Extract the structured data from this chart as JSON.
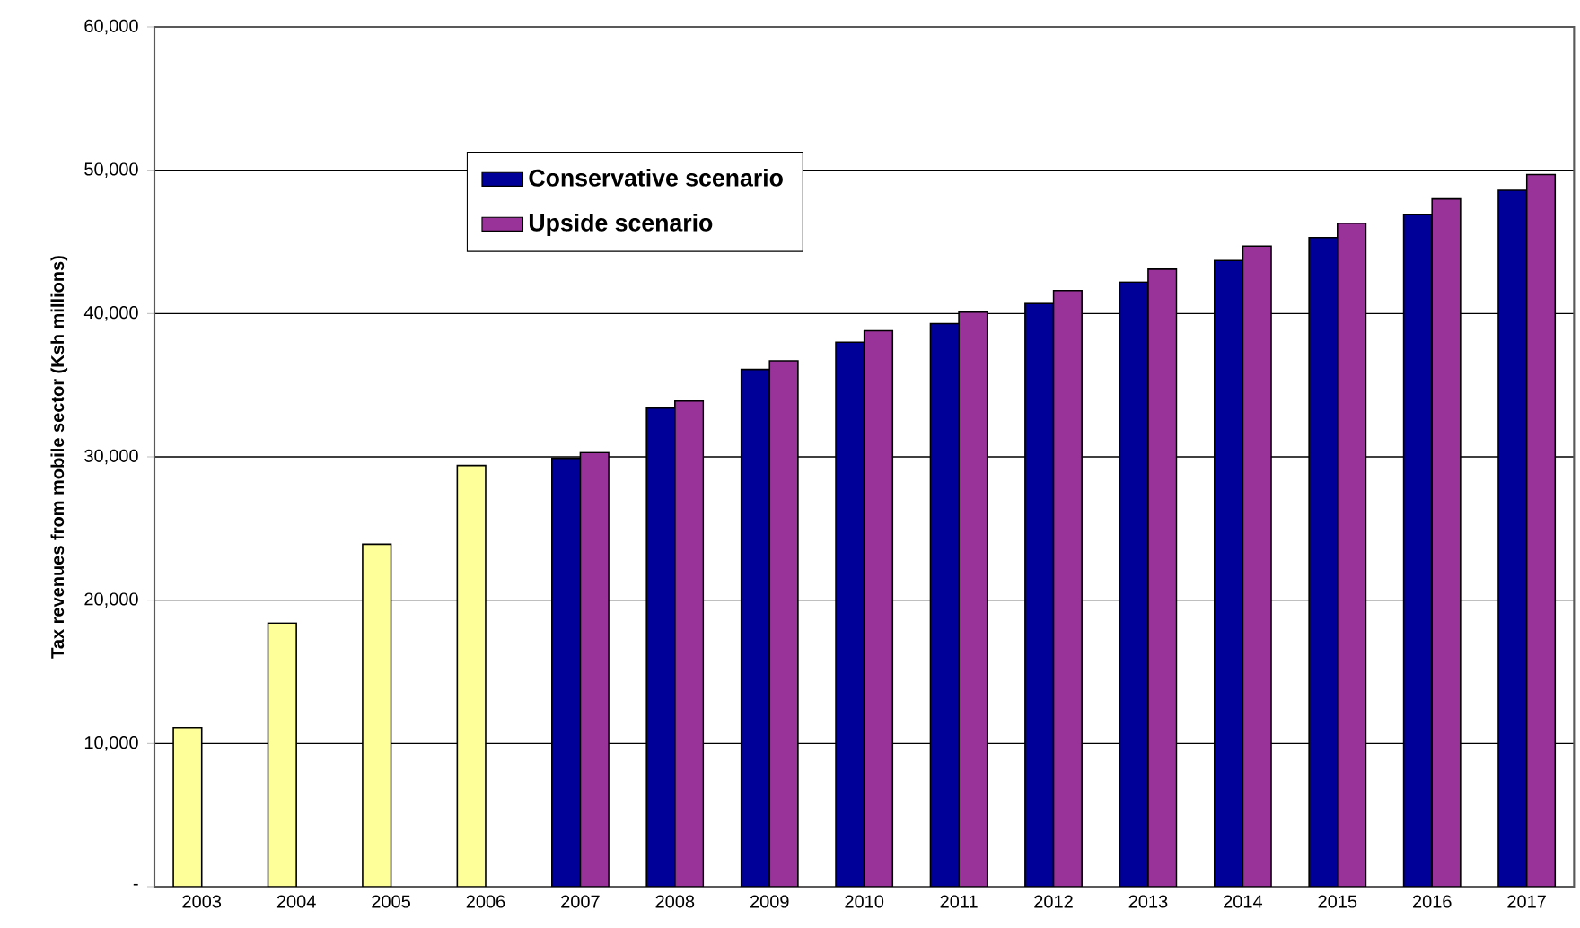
{
  "chart_data": {
    "type": "bar",
    "ylabel": "Tax revenues from mobile sector (Ksh millions)",
    "categories": [
      "2003",
      "2004",
      "2005",
      "2006",
      "2007",
      "2008",
      "2009",
      "2010",
      "2011",
      "2012",
      "2013",
      "2014",
      "2015",
      "2016",
      "2017"
    ],
    "series": [
      {
        "name": "Conservative scenario",
        "color": "#000099",
        "colors": [
          "#ffff99",
          "#ffff99",
          "#ffff99",
          "#ffff99",
          "#000099",
          "#000099",
          "#000099",
          "#000099",
          "#000099",
          "#000099",
          "#000099",
          "#000099",
          "#000099",
          "#000099",
          "#000099"
        ],
        "values": [
          11100,
          18400,
          23900,
          29400,
          29900,
          33400,
          36100,
          38000,
          39300,
          40700,
          42200,
          43700,
          45300,
          46900,
          48600
        ]
      },
      {
        "name": "Upside scenario",
        "color": "#993399",
        "values": [
          null,
          null,
          null,
          null,
          30300,
          33900,
          36700,
          38800,
          40100,
          41600,
          43100,
          44700,
          46300,
          48000,
          49700
        ]
      }
    ],
    "ylim": [
      0,
      60000
    ],
    "yticks": [
      {
        "value": 0,
        "label": "-"
      },
      {
        "value": 10000,
        "label": "10,000"
      },
      {
        "value": 20000,
        "label": "20,000"
      },
      {
        "value": 30000,
        "label": "30,000"
      },
      {
        "value": 40000,
        "label": "40,000"
      },
      {
        "value": 50000,
        "label": "50,000"
      },
      {
        "value": 60000,
        "label": "60,000"
      }
    ],
    "grid": "y",
    "legend": "top left"
  }
}
